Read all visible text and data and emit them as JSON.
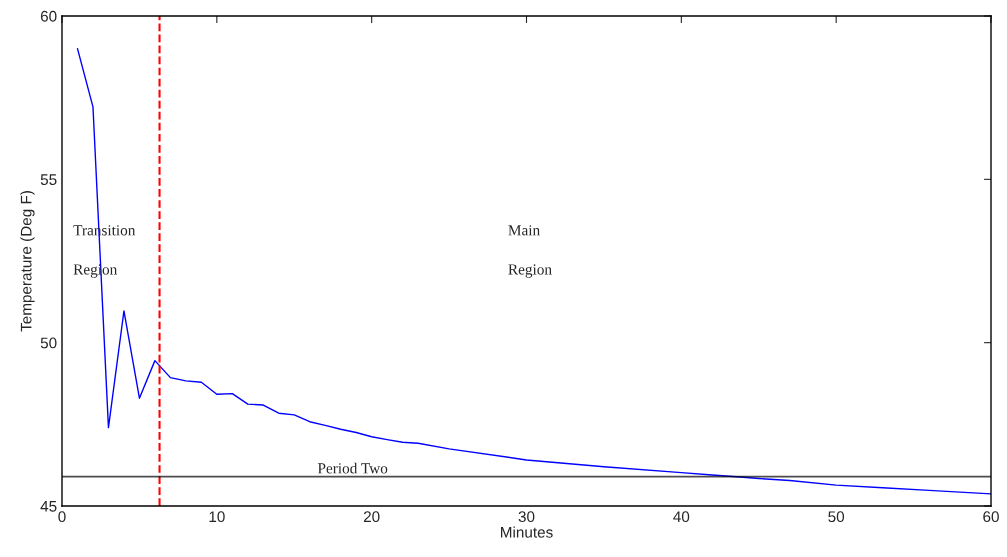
{
  "chart_data": {
    "type": "line",
    "xlabel": "Minutes",
    "ylabel": "Temperature (Deg F)",
    "x": [
      1,
      2,
      3,
      4,
      5,
      6,
      7,
      8,
      9,
      10,
      11,
      12,
      13,
      14,
      15,
      16,
      17,
      18,
      19,
      20,
      21,
      22,
      23,
      25,
      30,
      35,
      40,
      42,
      44,
      45,
      47,
      50,
      53,
      56,
      60
    ],
    "series": [
      {
        "color": "#0000ff",
        "values": [
          59.0,
          57.22,
          47.4,
          50.97,
          48.3,
          49.45,
          48.93,
          48.83,
          48.79,
          48.42,
          48.44,
          48.12,
          48.09,
          47.84,
          47.79,
          47.58,
          47.47,
          47.35,
          47.25,
          47.12,
          47.03,
          46.95,
          46.92,
          46.75,
          46.41,
          46.2,
          46.02,
          45.95,
          45.88,
          45.84,
          45.78,
          45.64,
          45.56,
          45.48,
          45.37
        ]
      }
    ],
    "xlim": [
      0,
      60
    ],
    "ylim": [
      45,
      60
    ],
    "xticks": [
      0,
      10,
      20,
      30,
      40,
      50,
      60
    ],
    "yticks": [
      45,
      50,
      55,
      60
    ],
    "grid": false,
    "legend": false,
    "marker": "none",
    "line_style": "solid",
    "ref_lines": [
      {
        "axis": "x",
        "value": 6.3,
        "color": "#ff0000",
        "line_style": "dashed"
      },
      {
        "axis": "y",
        "value": 45.9,
        "color": "#000000",
        "line_style": "solid",
        "label": "Period Two"
      }
    ],
    "annotations": [
      "Transition",
      "Region",
      "Main",
      "Region"
    ]
  }
}
